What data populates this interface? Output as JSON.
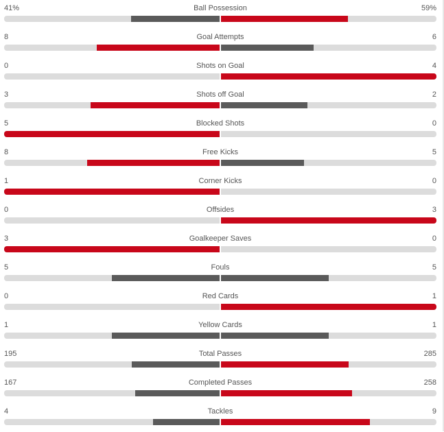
{
  "colors": {
    "leader": "#c8071a",
    "trailer": "#5a5a5a",
    "track": "#dcdcdc",
    "text": "#555555"
  },
  "stats": [
    {
      "name": "Ball Possession",
      "home": "41%",
      "away": "59%"
    },
    {
      "name": "Goal Attempts",
      "home": "8",
      "away": "6"
    },
    {
      "name": "Shots on Goal",
      "home": "0",
      "away": "4"
    },
    {
      "name": "Shots off Goal",
      "home": "3",
      "away": "2"
    },
    {
      "name": "Blocked Shots",
      "home": "5",
      "away": "0"
    },
    {
      "name": "Free Kicks",
      "home": "8",
      "away": "5"
    },
    {
      "name": "Corner Kicks",
      "home": "1",
      "away": "0"
    },
    {
      "name": "Offsides",
      "home": "0",
      "away": "3"
    },
    {
      "name": "Goalkeeper Saves",
      "home": "3",
      "away": "0"
    },
    {
      "name": "Fouls",
      "home": "5",
      "away": "5"
    },
    {
      "name": "Red Cards",
      "home": "0",
      "away": "1"
    },
    {
      "name": "Yellow Cards",
      "home": "1",
      "away": "1"
    },
    {
      "name": "Total Passes",
      "home": "195",
      "away": "285"
    },
    {
      "name": "Completed Passes",
      "home": "167",
      "away": "258"
    },
    {
      "name": "Tackles",
      "home": "4",
      "away": "9"
    }
  ]
}
